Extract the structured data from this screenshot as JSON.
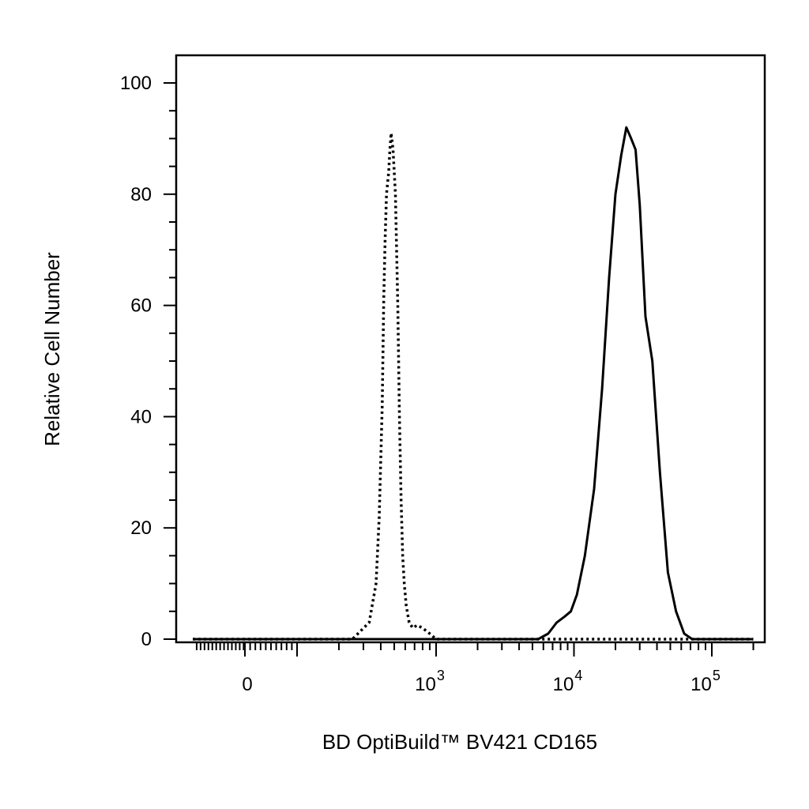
{
  "chart_data": {
    "type": "line",
    "title": "",
    "xlabel": "BD OptiBuild™ BV421 CD165",
    "ylabel": "Relative Cell Number",
    "x_scale": "biexponential",
    "xlim": [
      -100,
      200000
    ],
    "ylim": [
      0,
      105
    ],
    "y_ticks": [
      0,
      20,
      40,
      60,
      80,
      100
    ],
    "x_tick_labels": [
      {
        "value": 0,
        "base": "0",
        "exp": ""
      },
      {
        "value": 1000,
        "base": "10",
        "exp": "3"
      },
      {
        "value": 10000,
        "base": "10",
        "exp": "4"
      },
      {
        "value": 100000,
        "base": "10",
        "exp": "5"
      }
    ],
    "grid": false,
    "legend": "none",
    "series": [
      {
        "style": "dotted",
        "color": "#000000",
        "x": [
          -100,
          0,
          150,
          250,
          330,
          370,
          390,
          410,
          420,
          430,
          440,
          448,
          456,
          465,
          475,
          490,
          510,
          530,
          545,
          560,
          575,
          590,
          610,
          640,
          680,
          730,
          800,
          900,
          1000,
          1100,
          1250,
          1400,
          1600,
          2000,
          4000,
          200000
        ],
        "y": [
          0,
          0,
          0,
          0,
          3,
          10,
          22,
          42,
          61,
          72,
          80,
          82,
          84,
          88,
          91,
          88,
          80,
          60,
          40,
          25,
          15,
          10,
          6,
          3,
          2,
          2.5,
          2,
          1,
          0,
          0,
          0,
          0,
          0,
          0,
          0,
          0
        ]
      },
      {
        "style": "solid",
        "color": "#000000",
        "x": [
          -100,
          0,
          1000,
          3000,
          5500,
          6500,
          7500,
          8500,
          9500,
          10500,
          12000,
          14000,
          16000,
          18000,
          20000,
          22000,
          24000,
          26000,
          28000,
          30000,
          33000,
          37000,
          42000,
          48000,
          55000,
          63000,
          72000,
          82000,
          93000,
          105000,
          200000
        ],
        "y": [
          0,
          0,
          0,
          0,
          0,
          1,
          3,
          4,
          5,
          8,
          15,
          27,
          45,
          65,
          80,
          87,
          92,
          90,
          88,
          78,
          58,
          50,
          30,
          12,
          5,
          1,
          0,
          0,
          0,
          0,
          0
        ]
      }
    ]
  }
}
